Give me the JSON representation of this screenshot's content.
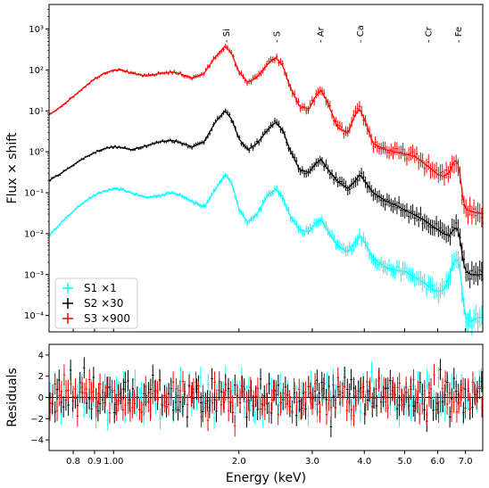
{
  "chart_data": {
    "type": "scatter",
    "xlabel": "Energy (keV)",
    "x_scale": "log",
    "xlim": [
      0.7,
      7.7
    ],
    "x_ticks": [
      {
        "value": 0.8,
        "label": "0.8"
      },
      {
        "value": 0.9,
        "label": "0.9"
      },
      {
        "value": 1.0,
        "label": "1.00"
      },
      {
        "value": 2.0,
        "label": "2.0"
      },
      {
        "value": 3.0,
        "label": "3.0"
      },
      {
        "value": 4.0,
        "label": "4.0"
      },
      {
        "value": 5.0,
        "label": "5.0"
      },
      {
        "value": 6.0,
        "label": "6.0"
      },
      {
        "value": 7.0,
        "label": "7.0"
      }
    ],
    "upper": {
      "ylabel": "Flux × shift",
      "y_scale": "log",
      "ylim_exp": [
        -4.4,
        3.6
      ],
      "y_ticks": [
        {
          "exp": -4,
          "label": "10⁻⁴"
        },
        {
          "exp": -3,
          "label": "10⁻³"
        },
        {
          "exp": -2,
          "label": "10⁻²"
        },
        {
          "exp": -1,
          "label": "10⁻¹"
        },
        {
          "exp": 0,
          "label": "10⁰"
        },
        {
          "exp": 1,
          "label": "10¹"
        },
        {
          "exp": 2,
          "label": "10²"
        },
        {
          "exp": 3,
          "label": "10³"
        }
      ],
      "line_labels": [
        {
          "text": "- Si",
          "energy": 1.86
        },
        {
          "text": "- S",
          "energy": 2.46
        },
        {
          "text": "- Ar",
          "energy": 3.13
        },
        {
          "text": "- Ca",
          "energy": 3.9
        },
        {
          "text": "- Cr",
          "energy": 5.68
        },
        {
          "text": "- Fe",
          "energy": 6.7
        }
      ],
      "legend_position": "lower-left",
      "series": [
        {
          "name": "S1 ×1",
          "color": "#00ffff",
          "profile_log10": [
            [
              0.7,
              -2.05
            ],
            [
              0.75,
              -1.72
            ],
            [
              0.8,
              -1.45
            ],
            [
              0.85,
              -1.22
            ],
            [
              0.9,
              -1.06
            ],
            [
              0.95,
              -0.96
            ],
            [
              1.0,
              -0.91
            ],
            [
              1.05,
              -0.92
            ],
            [
              1.1,
              -1.0
            ],
            [
              1.2,
              -1.12
            ],
            [
              1.3,
              -1.06
            ],
            [
              1.38,
              -1.0
            ],
            [
              1.45,
              -1.05
            ],
            [
              1.55,
              -1.22
            ],
            [
              1.65,
              -1.35
            ],
            [
              1.75,
              -0.95
            ],
            [
              1.85,
              -0.55
            ],
            [
              1.92,
              -0.75
            ],
            [
              2.0,
              -1.4
            ],
            [
              2.1,
              -1.72
            ],
            [
              2.2,
              -1.55
            ],
            [
              2.35,
              -1.05
            ],
            [
              2.45,
              -0.92
            ],
            [
              2.55,
              -1.1
            ],
            [
              2.65,
              -1.55
            ],
            [
              2.8,
              -1.92
            ],
            [
              2.95,
              -1.95
            ],
            [
              3.05,
              -1.75
            ],
            [
              3.15,
              -1.65
            ],
            [
              3.25,
              -1.9
            ],
            [
              3.45,
              -2.3
            ],
            [
              3.65,
              -2.45
            ],
            [
              3.8,
              -2.2
            ],
            [
              3.9,
              -2.05
            ],
            [
              4.0,
              -2.2
            ],
            [
              4.2,
              -2.6
            ],
            [
              4.5,
              -2.82
            ],
            [
              4.8,
              -2.9
            ],
            [
              5.0,
              -2.92
            ],
            [
              5.3,
              -3.08
            ],
            [
              5.6,
              -3.22
            ],
            [
              5.8,
              -3.35
            ],
            [
              6.0,
              -3.42
            ],
            [
              6.2,
              -3.38
            ],
            [
              6.4,
              -3.05
            ],
            [
              6.55,
              -2.72
            ],
            [
              6.68,
              -2.6
            ],
            [
              6.8,
              -2.9
            ],
            [
              6.9,
              -3.6
            ],
            [
              7.0,
              -4.05
            ],
            [
              7.2,
              -4.15
            ],
            [
              7.5,
              -4.05
            ]
          ],
          "residuals": [
            0.8,
            -1.2,
            1.9,
            -0.4,
            0.3,
            -2.1,
            1.1,
            0.6,
            -0.9,
            2.3,
            -1.5,
            0.2,
            -0.3,
            1.4,
            -2.6,
            0.9,
            -0.7,
            1.8,
            -1.1,
            0.4,
            2.9,
            -0.5,
            -1.9,
            0.7,
            1.2,
            -3.1,
            0.5,
            -0.2,
            1.6,
            -1.4,
            0.9,
            -0.8,
            2.1,
            -1.7,
            0.3,
            1.0,
            -0.6,
            -2.3,
            1.5,
            0.1,
            -1.0,
            2.5,
            -0.4,
            0.8,
            -1.6,
            1.3,
            -0.9,
            0.6,
            -2.0,
            1.7,
            0.2,
            -0.3
          ]
        },
        {
          "name": "S2 ×30",
          "color": "#000000",
          "profile_log10": [
            [
              0.7,
              -0.7
            ],
            [
              0.75,
              -0.52
            ],
            [
              0.8,
              -0.32
            ],
            [
              0.85,
              -0.15
            ],
            [
              0.9,
              -0.02
            ],
            [
              0.95,
              0.08
            ],
            [
              1.0,
              0.12
            ],
            [
              1.05,
              0.1
            ],
            [
              1.1,
              0.05
            ],
            [
              1.2,
              0.15
            ],
            [
              1.3,
              0.25
            ],
            [
              1.38,
              0.28
            ],
            [
              1.45,
              0.22
            ],
            [
              1.55,
              0.12
            ],
            [
              1.65,
              0.25
            ],
            [
              1.75,
              0.7
            ],
            [
              1.85,
              1.0
            ],
            [
              1.92,
              0.8
            ],
            [
              2.0,
              0.32
            ],
            [
              2.1,
              0.05
            ],
            [
              2.2,
              0.18
            ],
            [
              2.35,
              0.55
            ],
            [
              2.45,
              0.72
            ],
            [
              2.55,
              0.52
            ],
            [
              2.65,
              0.05
            ],
            [
              2.8,
              -0.45
            ],
            [
              2.95,
              -0.5
            ],
            [
              3.05,
              -0.3
            ],
            [
              3.15,
              -0.18
            ],
            [
              3.25,
              -0.4
            ],
            [
              3.45,
              -0.72
            ],
            [
              3.65,
              -0.9
            ],
            [
              3.8,
              -0.72
            ],
            [
              3.9,
              -0.55
            ],
            [
              4.0,
              -0.7
            ],
            [
              4.2,
              -1.0
            ],
            [
              4.5,
              -1.2
            ],
            [
              4.8,
              -1.32
            ],
            [
              5.0,
              -1.42
            ],
            [
              5.3,
              -1.55
            ],
            [
              5.6,
              -1.68
            ],
            [
              5.8,
              -1.8
            ],
            [
              6.0,
              -1.9
            ],
            [
              6.2,
              -2.0
            ],
            [
              6.4,
              -2.05
            ],
            [
              6.55,
              -1.9
            ],
            [
              6.68,
              -1.85
            ],
            [
              6.8,
              -2.15
            ],
            [
              6.9,
              -2.65
            ],
            [
              7.0,
              -2.9
            ],
            [
              7.2,
              -3.0
            ],
            [
              7.5,
              -3.0
            ]
          ],
          "residuals": [
            -0.5,
            1.3,
            -1.8,
            0.9,
            2.2,
            -0.7,
            -1.4,
            0.4,
            1.7,
            -2.4,
            0.6,
            -0.1,
            1.1,
            -1.9,
            0.8,
            2.6,
            -0.9,
            -0.3,
            1.5,
            -2.8,
            0.2,
            1.9,
            -1.1,
            0.5,
            -0.6,
            2.0,
            -1.3,
            0.7,
            -2.2,
            1.4,
            0.3,
            -0.8,
            1.2,
            -1.6,
            2.4,
            -0.4,
            0.9,
            -1.2,
            0.1,
            1.8,
            -2.5,
            0.6,
            -0.2,
            1.0,
            -1.5,
            2.7,
            -0.9,
            0.4,
            -1.7,
            1.1,
            -0.3,
            -1.3
          ]
        },
        {
          "name": "S3 ×900",
          "color": "#ff0000",
          "profile_log10": [
            [
              0.7,
              0.9
            ],
            [
              0.75,
              1.12
            ],
            [
              0.8,
              1.35
            ],
            [
              0.85,
              1.58
            ],
            [
              0.9,
              1.78
            ],
            [
              0.95,
              1.92
            ],
            [
              1.0,
              2.0
            ],
            [
              1.05,
              2.0
            ],
            [
              1.1,
              1.92
            ],
            [
              1.2,
              1.85
            ],
            [
              1.3,
              1.92
            ],
            [
              1.38,
              1.95
            ],
            [
              1.45,
              1.9
            ],
            [
              1.55,
              1.8
            ],
            [
              1.65,
              1.92
            ],
            [
              1.75,
              2.3
            ],
            [
              1.85,
              2.58
            ],
            [
              1.92,
              2.4
            ],
            [
              2.0,
              1.95
            ],
            [
              2.1,
              1.7
            ],
            [
              2.2,
              1.8
            ],
            [
              2.35,
              2.15
            ],
            [
              2.45,
              2.3
            ],
            [
              2.55,
              2.1
            ],
            [
              2.65,
              1.6
            ],
            [
              2.8,
              1.1
            ],
            [
              2.95,
              1.05
            ],
            [
              3.05,
              1.35
            ],
            [
              3.15,
              1.5
            ],
            [
              3.25,
              1.25
            ],
            [
              3.45,
              0.6
            ],
            [
              3.65,
              0.45
            ],
            [
              3.8,
              0.9
            ],
            [
              3.9,
              1.05
            ],
            [
              4.0,
              0.8
            ],
            [
              4.2,
              0.2
            ],
            [
              4.5,
              0.05
            ],
            [
              4.8,
              -0.02
            ],
            [
              5.0,
              -0.05
            ],
            [
              5.3,
              -0.12
            ],
            [
              5.6,
              -0.3
            ],
            [
              5.8,
              -0.42
            ],
            [
              6.0,
              -0.55
            ],
            [
              6.2,
              -0.6
            ],
            [
              6.4,
              -0.5
            ],
            [
              6.55,
              -0.25
            ],
            [
              6.68,
              -0.2
            ],
            [
              6.8,
              -0.6
            ],
            [
              6.9,
              -1.15
            ],
            [
              7.0,
              -1.4
            ],
            [
              7.2,
              -1.45
            ],
            [
              7.5,
              -1.5
            ]
          ],
          "residuals": [
            1.1,
            -0.3,
            -2.2,
            1.6,
            0.4,
            -1.0,
            2.4,
            -0.8,
            0.9,
            -1.6,
            0.2,
            1.3,
            -2.9,
            0.7,
            1.9,
            -0.4,
            -1.2,
            3.4,
            -0.6,
            1.0,
            -1.8,
            0.5,
            2.1,
            -0.9,
            -0.2,
            1.4,
            -2.0,
            0.8,
            -1.1,
            2.6,
            -0.5,
            0.3,
            -1.7,
            1.2,
            -0.7,
            2.0,
            -1.4,
            0.6,
            -0.1,
            1.5,
            -2.3,
            0.9,
            1.7,
            -0.6,
            -1.9,
            0.4,
            1.1,
            -0.8,
            2.2,
            -1.3,
            0.6,
            0.0
          ]
        }
      ]
    },
    "lower": {
      "ylabel": "Residuals",
      "ylim": [
        -5,
        5
      ],
      "y_ticks": [
        {
          "value": -4,
          "label": "−4"
        },
        {
          "value": -2,
          "label": "−2"
        },
        {
          "value": 0,
          "label": "0"
        },
        {
          "value": 2,
          "label": "2"
        },
        {
          "value": 4,
          "label": "4"
        }
      ],
      "zero_line": true
    }
  }
}
